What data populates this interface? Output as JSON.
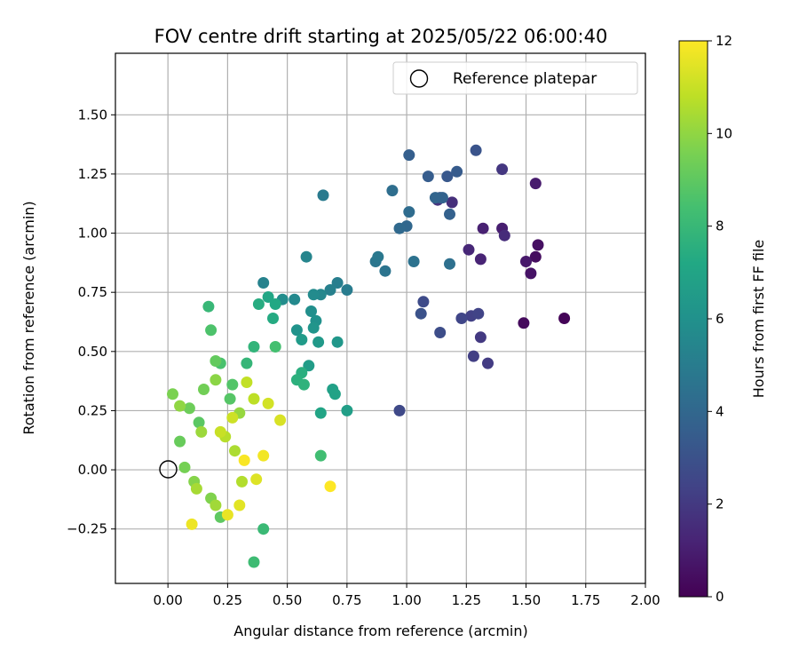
{
  "chart_data": {
    "type": "scatter",
    "title": "FOV centre drift starting at 2025/05/22 06:00:40",
    "xlabel": "Angular distance from reference (arcmin)",
    "ylabel": "Rotation from reference (arcmin)",
    "xlim": [
      -0.22,
      2.0
    ],
    "ylim": [
      -0.48,
      1.76
    ],
    "xticks": [
      "0.00",
      "0.25",
      "0.50",
      "0.75",
      "1.00",
      "1.25",
      "1.50",
      "1.75",
      "2.00"
    ],
    "yticks": [
      "−0.25",
      "0.00",
      "0.25",
      "0.50",
      "0.75",
      "1.00",
      "1.25",
      "1.50"
    ],
    "xtick_values": [
      0,
      0.25,
      0.5,
      0.75,
      1.0,
      1.25,
      1.5,
      1.75,
      2.0
    ],
    "ytick_values": [
      -0.25,
      0,
      0.25,
      0.5,
      0.75,
      1.0,
      1.25,
      1.5
    ],
    "grid": true,
    "legend": {
      "placement": "top-right",
      "entries": [
        "Reference platepar"
      ]
    },
    "reference_point": {
      "x": 0.0,
      "y": 0.0,
      "marker": "hollow-circle"
    },
    "colorbar": {
      "label": "Hours from first FF file",
      "range": [
        0,
        12
      ],
      "ticks": [
        "0",
        "2",
        "4",
        "6",
        "8",
        "10",
        "12"
      ],
      "tick_values": [
        0,
        2,
        4,
        6,
        8,
        10,
        12
      ],
      "colormap": "viridis"
    },
    "points": [
      [
        1.66,
        0.64,
        0.1
      ],
      [
        1.49,
        0.62,
        0.3
      ],
      [
        1.54,
        0.9,
        0.4
      ],
      [
        1.55,
        0.95,
        0.5
      ],
      [
        1.52,
        0.83,
        0.6
      ],
      [
        1.5,
        0.88,
        0.8
      ],
      [
        1.54,
        1.21,
        0.9
      ],
      [
        1.4,
        1.02,
        1.0
      ],
      [
        1.32,
        1.02,
        1.1
      ],
      [
        1.31,
        0.89,
        1.2
      ],
      [
        1.26,
        0.93,
        1.3
      ],
      [
        1.41,
        0.99,
        1.5
      ],
      [
        1.19,
        1.13,
        1.6
      ],
      [
        1.13,
        1.14,
        1.8
      ],
      [
        1.4,
        1.27,
        1.9
      ],
      [
        1.31,
        0.56,
        2.0
      ],
      [
        1.34,
        0.45,
        2.1
      ],
      [
        1.28,
        0.48,
        2.2
      ],
      [
        1.27,
        0.65,
        2.3
      ],
      [
        1.3,
        0.66,
        2.4
      ],
      [
        1.23,
        0.64,
        2.5
      ],
      [
        0.97,
        0.25,
        2.6
      ],
      [
        1.07,
        0.71,
        2.7
      ],
      [
        1.14,
        0.58,
        2.8
      ],
      [
        1.06,
        0.66,
        3.0
      ],
      [
        1.29,
        1.35,
        3.1
      ],
      [
        1.14,
        1.15,
        3.2
      ],
      [
        1.17,
        1.24,
        3.3
      ],
      [
        1.21,
        1.26,
        3.4
      ],
      [
        1.09,
        1.24,
        3.5
      ],
      [
        1.01,
        1.33,
        3.6
      ],
      [
        1.18,
        1.08,
        3.7
      ],
      [
        1.15,
        1.15,
        3.8
      ],
      [
        1.12,
        1.15,
        3.9
      ],
      [
        1.0,
        1.03,
        4.0
      ],
      [
        0.97,
        1.02,
        4.1
      ],
      [
        1.01,
        1.09,
        4.2
      ],
      [
        0.94,
        1.18,
        4.3
      ],
      [
        1.18,
        0.87,
        4.4
      ],
      [
        1.03,
        0.88,
        4.5
      ],
      [
        0.91,
        0.84,
        4.6
      ],
      [
        0.87,
        0.88,
        4.7
      ],
      [
        0.88,
        0.9,
        4.8
      ],
      [
        0.65,
        1.16,
        4.9
      ],
      [
        0.75,
        0.76,
        5.0
      ],
      [
        0.71,
        0.79,
        5.1
      ],
      [
        0.68,
        0.76,
        5.2
      ],
      [
        0.4,
        0.79,
        5.3
      ],
      [
        0.58,
        0.9,
        5.4
      ],
      [
        0.64,
        0.74,
        5.5
      ],
      [
        0.53,
        0.72,
        5.6
      ],
      [
        0.61,
        0.74,
        5.7
      ],
      [
        0.48,
        0.72,
        5.8
      ],
      [
        0.6,
        0.67,
        5.9
      ],
      [
        0.62,
        0.63,
        6.0
      ],
      [
        0.54,
        0.59,
        6.1
      ],
      [
        0.61,
        0.6,
        6.2
      ],
      [
        0.71,
        0.54,
        6.3
      ],
      [
        0.63,
        0.54,
        6.4
      ],
      [
        0.56,
        0.55,
        6.5
      ],
      [
        0.59,
        0.44,
        6.6
      ],
      [
        0.75,
        0.25,
        6.7
      ],
      [
        0.69,
        0.34,
        6.8
      ],
      [
        0.7,
        0.32,
        6.9
      ],
      [
        0.64,
        0.24,
        7.0
      ],
      [
        0.42,
        0.73,
        7.1
      ],
      [
        0.45,
        0.7,
        7.2
      ],
      [
        0.44,
        0.64,
        7.3
      ],
      [
        0.38,
        0.7,
        7.4
      ],
      [
        0.56,
        0.41,
        7.5
      ],
      [
        0.54,
        0.38,
        7.6
      ],
      [
        0.57,
        0.36,
        7.7
      ],
      [
        0.36,
        0.52,
        7.8
      ],
      [
        0.33,
        0.45,
        7.9
      ],
      [
        0.17,
        0.69,
        8.0
      ],
      [
        0.4,
        -0.25,
        8.1
      ],
      [
        0.36,
        -0.39,
        8.2
      ],
      [
        0.64,
        0.06,
        8.3
      ],
      [
        0.45,
        0.52,
        8.4
      ],
      [
        0.22,
        0.45,
        8.5
      ],
      [
        0.18,
        0.59,
        8.6
      ],
      [
        0.27,
        0.36,
        8.7
      ],
      [
        0.26,
        0.3,
        8.8
      ],
      [
        0.13,
        0.2,
        8.9
      ],
      [
        0.22,
        -0.2,
        9.0
      ],
      [
        0.2,
        0.46,
        9.1
      ],
      [
        0.05,
        0.12,
        9.2
      ],
      [
        0.09,
        0.26,
        9.3
      ],
      [
        0.15,
        0.34,
        9.4
      ],
      [
        0.07,
        0.01,
        9.5
      ],
      [
        0.02,
        0.32,
        9.6
      ],
      [
        0.18,
        -0.12,
        9.7
      ],
      [
        0.11,
        -0.05,
        9.8
      ],
      [
        0.2,
        0.38,
        9.9
      ],
      [
        0.05,
        0.27,
        10.0
      ],
      [
        0.3,
        0.24,
        10.1
      ],
      [
        0.14,
        0.16,
        10.2
      ],
      [
        0.2,
        -0.15,
        10.3
      ],
      [
        0.12,
        -0.08,
        10.4
      ],
      [
        0.28,
        0.08,
        10.5
      ],
      [
        0.31,
        -0.05,
        10.6
      ],
      [
        0.24,
        0.14,
        10.7
      ],
      [
        0.36,
        0.3,
        10.8
      ],
      [
        0.33,
        0.37,
        10.9
      ],
      [
        0.22,
        0.16,
        11.0
      ],
      [
        0.27,
        0.22,
        11.1
      ],
      [
        0.42,
        0.28,
        11.2
      ],
      [
        0.47,
        0.21,
        11.3
      ],
      [
        0.37,
        -0.04,
        11.4
      ],
      [
        0.3,
        -0.15,
        11.5
      ],
      [
        0.25,
        -0.19,
        11.6
      ],
      [
        0.1,
        -0.23,
        11.7
      ],
      [
        0.4,
        0.06,
        11.8
      ],
      [
        0.32,
        0.04,
        11.9
      ],
      [
        0.68,
        -0.07,
        12.0
      ]
    ]
  }
}
